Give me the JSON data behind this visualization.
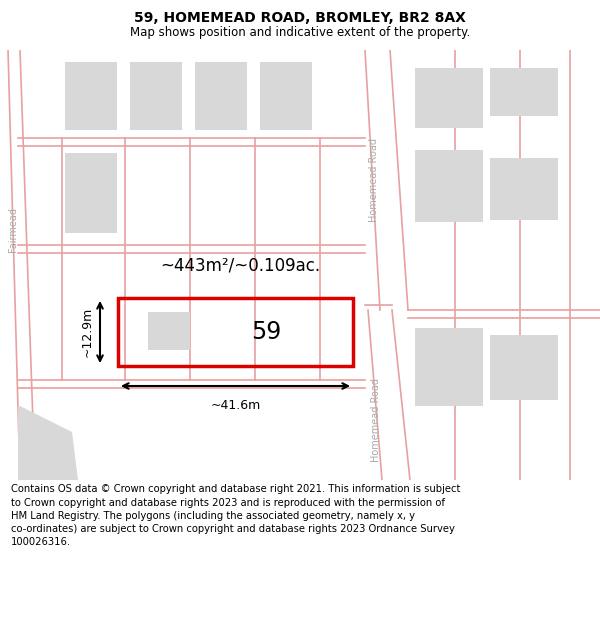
{
  "title": "59, HOMEMEAD ROAD, BROMLEY, BR2 8AX",
  "subtitle": "Map shows position and indicative extent of the property.",
  "footer": "Contains OS data © Crown copyright and database right 2021. This information is subject\nto Crown copyright and database rights 2023 and is reproduced with the permission of\nHM Land Registry. The polygons (including the associated geometry, namely x, y\nco-ordinates) are subject to Crown copyright and database rights 2023 Ordnance Survey\n100026316.",
  "bg_color": "#ffffff",
  "map_bg": "#f8f8f8",
  "block_fill": "#d8d8d8",
  "road_line_color": "#e8a0a0",
  "highlight_color": "#dd0000",
  "dim_color": "#000000",
  "label_59": "59",
  "area_label": "~443m²/~0.109ac.",
  "dim_width": "~41.6m",
  "dim_height": "~12.9m",
  "road_label_upper": "Homemead Road",
  "road_label_lower": "Homemead Road",
  "road_label_fairmead": "Fairmead",
  "title_fontsize": 10,
  "subtitle_fontsize": 8.5,
  "footer_fontsize": 7.2
}
